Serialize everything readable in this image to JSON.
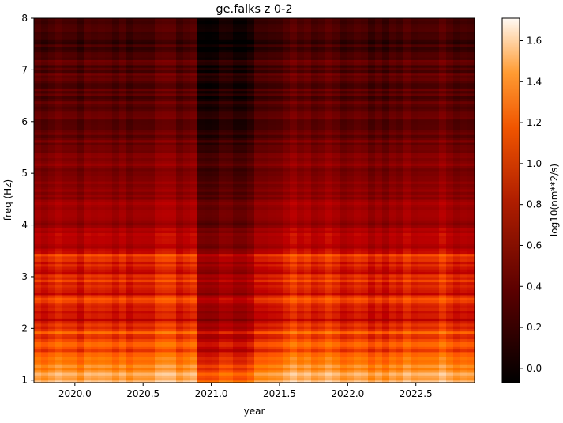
{
  "chart_data": {
    "type": "heatmap",
    "title": "ge.falks z 0-2",
    "xlabel": "year",
    "ylabel": "freq (Hz)",
    "xlim": [
      2019.7,
      2022.93
    ],
    "ylim": [
      0.95,
      8.0
    ],
    "x_ticks": [
      2020.0,
      2020.5,
      2021.0,
      2021.5,
      2022.0,
      2022.5
    ],
    "x_tick_labels": [
      "2020.0",
      "2020.5",
      "2021.0",
      "2021.5",
      "2022.0",
      "2022.5"
    ],
    "y_ticks": [
      1,
      2,
      3,
      4,
      5,
      6,
      7,
      8
    ],
    "y_tick_labels": [
      "1",
      "2",
      "3",
      "4",
      "5",
      "6",
      "7",
      "8"
    ],
    "colormap": "gist_heat",
    "colorbar": {
      "label": "log10(nm**2/s)",
      "range": [
        -0.07,
        1.71
      ],
      "ticks": [
        0.0,
        0.2,
        0.4,
        0.6,
        0.8,
        1.0,
        1.2,
        1.4,
        1.6
      ],
      "tick_labels": [
        "0.0",
        "0.2",
        "0.4",
        "0.6",
        "0.8",
        "1.0",
        "1.2",
        "1.4",
        "1.6"
      ]
    },
    "frequency_profile": [
      {
        "freq": 1.0,
        "value": 1.45
      },
      {
        "freq": 1.15,
        "value": 1.35
      },
      {
        "freq": 1.4,
        "value": 1.15
      },
      {
        "freq": 1.8,
        "value": 1.0
      },
      {
        "freq": 2.2,
        "value": 0.85
      },
      {
        "freq": 2.6,
        "value": 0.85
      },
      {
        "freq": 3.0,
        "value": 0.88
      },
      {
        "freq": 3.4,
        "value": 0.9
      },
      {
        "freq": 3.7,
        "value": 0.7
      },
      {
        "freq": 4.5,
        "value": 0.6
      },
      {
        "freq": 5.5,
        "value": 0.45
      },
      {
        "freq": 6.5,
        "value": 0.3
      },
      {
        "freq": 7.5,
        "value": 0.22
      },
      {
        "freq": 8.0,
        "value": 0.25
      }
    ],
    "bright_bands_hz": [
      1.12,
      1.7,
      1.95,
      2.5,
      2.6,
      2.95,
      3.4,
      6.9,
      7.15
    ],
    "quiet_period": {
      "start": 2020.9,
      "end": 2021.3,
      "reduction": 0.25
    },
    "seasonal_bright_periods": [
      [
        2020.5,
        2020.9
      ],
      [
        2021.5,
        2021.9
      ],
      [
        2022.4,
        2022.93
      ]
    ]
  }
}
